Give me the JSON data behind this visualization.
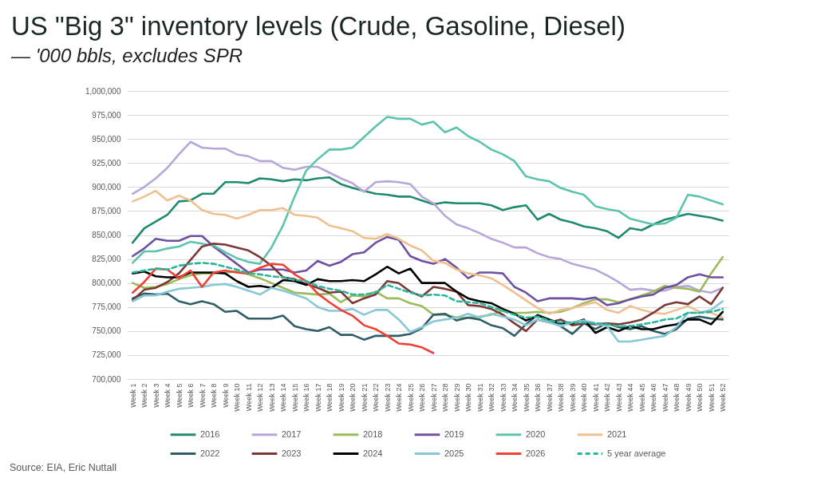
{
  "chart_data": {
    "type": "line",
    "title": "US \"Big 3\" inventory levels (Crude, Gasoline, Diesel)",
    "subtitle": "— '000 bbls, excludes SPR",
    "categories": [
      "Week 1",
      "Week 2",
      "Week 3",
      "Week 4",
      "Week 5",
      "Week 6",
      "Week 7",
      "Week 8",
      "Week 9",
      "Week 10",
      "Week 11",
      "Week 12",
      "Week 13",
      "Week 14",
      "Week 15",
      "Week 16",
      "Week 17",
      "Week 18",
      "Week 19",
      "Week 20",
      "Week 21",
      "Week 22",
      "Week 23",
      "Week 24",
      "Week 25",
      "Week 26",
      "Week 27",
      "Week 28",
      "Week 29",
      "Week 30",
      "Week 31",
      "Week 32",
      "Week 33",
      "Week 34",
      "Week 35",
      "Week 36",
      "Week 37",
      "Week 38",
      "Week 39",
      "Week 40",
      "Week 41",
      "Week 42",
      "Week 43",
      "Week 44",
      "Week 45",
      "Week 46",
      "Week 47",
      "Week 48",
      "Week 49",
      "Week 50",
      "Week 51",
      "Week 52"
    ],
    "series": [
      {
        "name": "2016",
        "color": "#1f8a6e",
        "values": [
          842000,
          857000,
          864000,
          871000,
          885000,
          886000,
          893000,
          893000,
          905000,
          905000,
          904000,
          909000,
          908000,
          906000,
          908000,
          907000,
          909000,
          910000,
          903000,
          899000,
          896000,
          893000,
          892000,
          890000,
          890000,
          886000,
          882000,
          884000,
          883000,
          883000,
          883000,
          881000,
          876000,
          879000,
          881000,
          866000,
          872000,
          866000,
          863000,
          859000,
          857000,
          854000,
          847000,
          857000,
          855000,
          861000,
          866000,
          869000,
          872000,
          870000,
          868000,
          865000
        ]
      },
      {
        "name": "2017",
        "color": "#b7a6d9",
        "values": [
          893000,
          900000,
          909000,
          920000,
          934000,
          947000,
          941000,
          940000,
          940000,
          934000,
          932000,
          927000,
          927000,
          920000,
          918000,
          921000,
          921000,
          915000,
          909000,
          904000,
          895000,
          905000,
          906000,
          905000,
          903000,
          890000,
          883000,
          870000,
          861000,
          857000,
          852000,
          846000,
          842000,
          837000,
          837000,
          831000,
          827000,
          825000,
          820000,
          817000,
          814000,
          808000,
          801000,
          793000,
          794000,
          792000,
          792000,
          796000,
          797000,
          792000,
          790000,
          795000
        ]
      },
      {
        "name": "2018",
        "color": "#9bbb59",
        "values": [
          800000,
          795000,
          796000,
          799000,
          804000,
          808000,
          810000,
          810000,
          811000,
          812000,
          809000,
          805000,
          800000,
          795000,
          790000,
          789000,
          788000,
          789000,
          780000,
          787000,
          786000,
          791000,
          784000,
          784000,
          779000,
          776000,
          767000,
          767000,
          764000,
          764000,
          765000,
          767000,
          771000,
          769000,
          769000,
          770000,
          769000,
          770000,
          774000,
          779000,
          783000,
          783000,
          780000,
          783000,
          787000,
          791000,
          797000,
          795000,
          794000,
          791000,
          810000,
          827000
        ]
      },
      {
        "name": "2019",
        "color": "#6f4f9f",
        "values": [
          828000,
          836000,
          846000,
          844000,
          844000,
          849000,
          849000,
          838000,
          829000,
          820000,
          811000,
          814000,
          814000,
          814000,
          811000,
          813000,
          823000,
          818000,
          822000,
          830000,
          832000,
          842000,
          848000,
          845000,
          828000,
          823000,
          820000,
          825000,
          816000,
          805000,
          811000,
          811000,
          810000,
          796000,
          790000,
          781000,
          784000,
          784000,
          784000,
          783000,
          785000,
          777000,
          779000,
          783000,
          786000,
          788000,
          795000,
          798000,
          806000,
          809000,
          806000,
          806000
        ]
      },
      {
        "name": "2020",
        "color": "#5cc3ad",
        "values": [
          821000,
          833000,
          833000,
          836000,
          838000,
          843000,
          841000,
          839000,
          832000,
          826000,
          822000,
          820000,
          837000,
          860000,
          890000,
          917000,
          929000,
          939000,
          939000,
          941000,
          952000,
          963000,
          973000,
          971000,
          971000,
          965000,
          968000,
          957000,
          962000,
          953000,
          947000,
          939000,
          934000,
          927000,
          911000,
          908000,
          906000,
          899000,
          895000,
          892000,
          880000,
          877000,
          875000,
          867000,
          864000,
          861000,
          862000,
          868000,
          892000,
          890000,
          886000,
          882000
        ]
      },
      {
        "name": "2021",
        "color": "#efc08f",
        "values": [
          885000,
          890000,
          896000,
          886000,
          891000,
          886000,
          876000,
          872000,
          871000,
          867000,
          871000,
          876000,
          876000,
          878000,
          871000,
          870000,
          868000,
          860000,
          857000,
          854000,
          847000,
          846000,
          851000,
          846000,
          839000,
          834000,
          823000,
          821000,
          814000,
          810000,
          808000,
          805000,
          798000,
          790000,
          782000,
          774000,
          768000,
          772000,
          774000,
          777000,
          780000,
          772000,
          769000,
          776000,
          772000,
          769000,
          768000,
          772000,
          776000,
          770000,
          769000,
          764000
        ]
      },
      {
        "name": "2022",
        "color": "#2e5d68",
        "values": [
          784000,
          789000,
          788000,
          789000,
          781000,
          778000,
          781000,
          778000,
          770000,
          771000,
          763000,
          763000,
          763000,
          766000,
          755000,
          752000,
          750000,
          754000,
          746000,
          746000,
          741000,
          745000,
          745000,
          745000,
          747000,
          753000,
          767000,
          768000,
          761000,
          764000,
          762000,
          756000,
          753000,
          745000,
          757000,
          767000,
          762000,
          755000,
          747000,
          758000,
          752000,
          758000,
          754000,
          752000,
          755000,
          750000,
          747000,
          752000,
          763000,
          765000,
          763000,
          762000
        ]
      },
      {
        "name": "2023",
        "color": "#7b3835",
        "values": [
          782000,
          793000,
          795000,
          801000,
          810000,
          824000,
          838000,
          841000,
          840000,
          837000,
          834000,
          827000,
          818000,
          806000,
          804000,
          799000,
          795000,
          790000,
          791000,
          779000,
          784000,
          788000,
          802000,
          800000,
          791000,
          786000,
          796000,
          794000,
          791000,
          777000,
          776000,
          773000,
          767000,
          758000,
          750000,
          762000,
          759000,
          762000,
          756000,
          758000,
          757000,
          758000,
          757000,
          759000,
          762000,
          769000,
          777000,
          780000,
          778000,
          786000,
          778000,
          795000
        ]
      },
      {
        "name": "2024",
        "color": "#000000",
        "values": [
          810000,
          812000,
          807000,
          806000,
          806000,
          811000,
          811000,
          811000,
          810000,
          802000,
          796000,
          797000,
          795000,
          803000,
          802000,
          798000,
          804000,
          802000,
          802000,
          803000,
          802000,
          809000,
          817000,
          810000,
          815000,
          800000,
          800000,
          800000,
          791000,
          784000,
          781000,
          779000,
          773000,
          768000,
          761000,
          766000,
          762000,
          758000,
          758000,
          762000,
          748000,
          754000,
          750000,
          755000,
          752000,
          752000,
          755000,
          757000,
          762000,
          762000,
          757000,
          770000
        ]
      },
      {
        "name": "2025",
        "color": "#86c8d6",
        "values": [
          781000,
          787000,
          787000,
          791000,
          794000,
          795000,
          796000,
          798000,
          799000,
          796000,
          792000,
          788000,
          795000,
          792000,
          788000,
          784000,
          775000,
          771000,
          771000,
          773000,
          767000,
          772000,
          772000,
          762000,
          749000,
          754000,
          760000,
          762000,
          764000,
          768000,
          764000,
          768000,
          765000,
          762000,
          756000,
          762000,
          759000,
          755000,
          759000,
          761000,
          758000,
          755000,
          739000,
          739000,
          741000,
          743000,
          745000,
          754000,
          769000,
          769000,
          772000,
          781000
        ]
      },
      {
        "name": "2026",
        "color": "#ee4035",
        "values": [
          790000,
          801000,
          815000,
          814000,
          805000,
          813000,
          796000,
          811000,
          813000,
          811000,
          810000,
          816000,
          820000,
          819000,
          809000,
          802000,
          789000,
          780000,
          772000,
          766000,
          756000,
          752000,
          745000,
          737000,
          736000,
          733000,
          727000,
          null,
          null,
          null,
          null,
          null,
          null,
          null,
          null,
          null,
          null,
          null,
          null,
          null,
          null,
          null,
          null,
          null,
          null,
          null,
          null,
          null,
          null,
          null,
          null,
          null
        ]
      },
      {
        "name": "5 year average",
        "color": "#2bb59d",
        "line_style": "dashed",
        "values": [
          811000,
          813000,
          815000,
          814000,
          818000,
          820000,
          821000,
          820000,
          817000,
          814000,
          810000,
          809000,
          807000,
          806000,
          803000,
          802000,
          797000,
          794000,
          792000,
          788000,
          788000,
          790000,
          798000,
          794000,
          790000,
          787000,
          788000,
          787000,
          781000,
          780000,
          779000,
          775000,
          771000,
          767000,
          764000,
          765000,
          761000,
          759000,
          759000,
          759000,
          758000,
          757000,
          755000,
          755000,
          757000,
          759000,
          762000,
          763000,
          769000,
          769000,
          770000,
          773000
        ]
      }
    ],
    "ylim": [
      700000,
      1000000
    ],
    "yticks": [
      {
        "value": 700000,
        "label": "700,000"
      },
      {
        "value": 725000,
        "label": "725,000"
      },
      {
        "value": 750000,
        "label": "750,000"
      },
      {
        "value": 775000,
        "label": "775,000"
      },
      {
        "value": 800000,
        "label": "800,000"
      },
      {
        "value": 825000,
        "label": "825,000"
      },
      {
        "value": 850000,
        "label": "850,000"
      },
      {
        "value": 875000,
        "label": "875,000"
      },
      {
        "value": 900000,
        "label": "900,000"
      },
      {
        "value": 925000,
        "label": "925,000"
      },
      {
        "value": 950000,
        "label": "950,000"
      },
      {
        "value": 975000,
        "label": "975,000"
      },
      {
        "value": 1000000,
        "label": "1,000,000"
      }
    ],
    "grid": "y",
    "legend": "bottom",
    "line_style": "solid",
    "annotations": [
      "Source: EIA, Eric Nuttall"
    ]
  }
}
